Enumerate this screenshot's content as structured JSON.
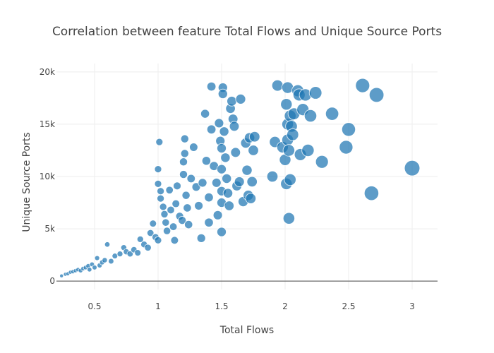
{
  "chart_data": {
    "type": "scatter",
    "title": "Correlation between feature Total Flows and Unique Source Ports",
    "xlabel": "Total Flows",
    "ylabel": "Unique Source Ports",
    "xlim": [
      0.2,
      3.2
    ],
    "ylim": [
      -800,
      20800
    ],
    "xticks": [
      0.5,
      1,
      1.5,
      2,
      2.5,
      3
    ],
    "xtick_labels": [
      "0.5",
      "1",
      "1.5",
      "2",
      "2.5",
      "3"
    ],
    "yticks": [
      0,
      5000,
      10000,
      15000,
      20000
    ],
    "ytick_labels": [
      "0",
      "5k",
      "10k",
      "15k",
      "20k"
    ],
    "grid": true,
    "legend": "none",
    "marker_color": "#1f77b4",
    "marker_outline_color": "#ffffff",
    "series": [
      {
        "points": [
          {
            "x": 0.24,
            "y": 500
          },
          {
            "x": 0.27,
            "y": 650
          },
          {
            "x": 0.29,
            "y": 700
          },
          {
            "x": 0.31,
            "y": 850
          },
          {
            "x": 0.33,
            "y": 900
          },
          {
            "x": 0.35,
            "y": 1000
          },
          {
            "x": 0.37,
            "y": 1100
          },
          {
            "x": 0.39,
            "y": 1000
          },
          {
            "x": 0.41,
            "y": 1200
          },
          {
            "x": 0.43,
            "y": 1300
          },
          {
            "x": 0.45,
            "y": 1450
          },
          {
            "x": 0.46,
            "y": 1100
          },
          {
            "x": 0.48,
            "y": 1600
          },
          {
            "x": 0.5,
            "y": 1300
          },
          {
            "x": 0.52,
            "y": 2200
          },
          {
            "x": 0.54,
            "y": 1500
          },
          {
            "x": 0.56,
            "y": 1800
          },
          {
            "x": 0.58,
            "y": 2000
          },
          {
            "x": 0.6,
            "y": 3500
          },
          {
            "x": 0.63,
            "y": 1900
          },
          {
            "x": 0.66,
            "y": 2400
          },
          {
            "x": 0.7,
            "y": 2600
          },
          {
            "x": 0.73,
            "y": 3200
          },
          {
            "x": 0.75,
            "y": 2800
          },
          {
            "x": 0.78,
            "y": 2600
          },
          {
            "x": 0.81,
            "y": 3000
          },
          {
            "x": 0.84,
            "y": 2700
          },
          {
            "x": 0.86,
            "y": 4000
          },
          {
            "x": 0.89,
            "y": 3500
          },
          {
            "x": 0.92,
            "y": 3200
          },
          {
            "x": 0.94,
            "y": 4600
          },
          {
            "x": 0.96,
            "y": 5500
          },
          {
            "x": 0.98,
            "y": 4200
          },
          {
            "x": 1.0,
            "y": 3900
          },
          {
            "x": 1.0,
            "y": 9300
          },
          {
            "x": 1.0,
            "y": 10700
          },
          {
            "x": 1.01,
            "y": 13300
          },
          {
            "x": 1.02,
            "y": 7900
          },
          {
            "x": 1.02,
            "y": 8600
          },
          {
            "x": 1.04,
            "y": 7100
          },
          {
            "x": 1.05,
            "y": 6400
          },
          {
            "x": 1.06,
            "y": 5600
          },
          {
            "x": 1.07,
            "y": 4800
          },
          {
            "x": 1.09,
            "y": 8700
          },
          {
            "x": 1.1,
            "y": 6800
          },
          {
            "x": 1.12,
            "y": 5200
          },
          {
            "x": 1.13,
            "y": 3900
          },
          {
            "x": 1.14,
            "y": 7400
          },
          {
            "x": 1.15,
            "y": 9100
          },
          {
            "x": 1.17,
            "y": 6200
          },
          {
            "x": 1.19,
            "y": 5800
          },
          {
            "x": 1.2,
            "y": 10200
          },
          {
            "x": 1.2,
            "y": 11400
          },
          {
            "x": 1.21,
            "y": 12200
          },
          {
            "x": 1.21,
            "y": 13600
          },
          {
            "x": 1.22,
            "y": 8200
          },
          {
            "x": 1.23,
            "y": 7000
          },
          {
            "x": 1.24,
            "y": 5400
          },
          {
            "x": 1.26,
            "y": 9800
          },
          {
            "x": 1.28,
            "y": 12800
          },
          {
            "x": 1.3,
            "y": 9000
          },
          {
            "x": 1.32,
            "y": 7200
          },
          {
            "x": 1.34,
            "y": 4100
          },
          {
            "x": 1.35,
            "y": 9400
          },
          {
            "x": 1.37,
            "y": 16000
          },
          {
            "x": 1.38,
            "y": 11500
          },
          {
            "x": 1.4,
            "y": 8000
          },
          {
            "x": 1.4,
            "y": 5600
          },
          {
            "x": 1.42,
            "y": 14500
          },
          {
            "x": 1.42,
            "y": 18600
          },
          {
            "x": 1.44,
            "y": 11000
          },
          {
            "x": 1.46,
            "y": 9400
          },
          {
            "x": 1.47,
            "y": 6300
          },
          {
            "x": 1.48,
            "y": 15100
          },
          {
            "x": 1.49,
            "y": 13400
          },
          {
            "x": 1.5,
            "y": 12700
          },
          {
            "x": 1.5,
            "y": 10700
          },
          {
            "x": 1.5,
            "y": 8600
          },
          {
            "x": 1.5,
            "y": 7500
          },
          {
            "x": 1.5,
            "y": 4700
          },
          {
            "x": 1.51,
            "y": 18500
          },
          {
            "x": 1.51,
            "y": 17900
          },
          {
            "x": 1.52,
            "y": 14300
          },
          {
            "x": 1.53,
            "y": 11800
          },
          {
            "x": 1.54,
            "y": 9800
          },
          {
            "x": 1.55,
            "y": 8400
          },
          {
            "x": 1.56,
            "y": 7200
          },
          {
            "x": 1.57,
            "y": 16500
          },
          {
            "x": 1.58,
            "y": 17200
          },
          {
            "x": 1.59,
            "y": 15500
          },
          {
            "x": 1.6,
            "y": 14800
          },
          {
            "x": 1.61,
            "y": 12300
          },
          {
            "x": 1.62,
            "y": 9100
          },
          {
            "x": 1.64,
            "y": 9500
          },
          {
            "x": 1.65,
            "y": 17400
          },
          {
            "x": 1.67,
            "y": 7600
          },
          {
            "x": 1.69,
            "y": 13200
          },
          {
            "x": 1.7,
            "y": 10600
          },
          {
            "x": 1.71,
            "y": 8200
          },
          {
            "x": 1.72,
            "y": 13700
          },
          {
            "x": 1.73,
            "y": 7900
          },
          {
            "x": 1.74,
            "y": 9500
          },
          {
            "x": 1.75,
            "y": 12500
          },
          {
            "x": 1.76,
            "y": 13800
          },
          {
            "x": 1.9,
            "y": 10000
          },
          {
            "x": 1.92,
            "y": 13300
          },
          {
            "x": 1.94,
            "y": 18700
          },
          {
            "x": 1.98,
            "y": 12800
          },
          {
            "x": 2.0,
            "y": 11600
          },
          {
            "x": 2.01,
            "y": 9300
          },
          {
            "x": 2.01,
            "y": 16900
          },
          {
            "x": 2.02,
            "y": 18500
          },
          {
            "x": 2.02,
            "y": 15000
          },
          {
            "x": 2.02,
            "y": 13500
          },
          {
            "x": 2.03,
            "y": 12500
          },
          {
            "x": 2.03,
            "y": 6000
          },
          {
            "x": 2.04,
            "y": 9700
          },
          {
            "x": 2.04,
            "y": 15800
          },
          {
            "x": 2.05,
            "y": 14800
          },
          {
            "x": 2.06,
            "y": 14000
          },
          {
            "x": 2.07,
            "y": 16000
          },
          {
            "x": 2.1,
            "y": 18200
          },
          {
            "x": 2.11,
            "y": 17800
          },
          {
            "x": 2.12,
            "y": 12100
          },
          {
            "x": 2.14,
            "y": 16400
          },
          {
            "x": 2.16,
            "y": 17800
          },
          {
            "x": 2.18,
            "y": 12500
          },
          {
            "x": 2.2,
            "y": 15800
          },
          {
            "x": 2.24,
            "y": 18000
          },
          {
            "x": 2.29,
            "y": 11400
          },
          {
            "x": 2.37,
            "y": 16000
          },
          {
            "x": 2.48,
            "y": 12800
          },
          {
            "x": 2.5,
            "y": 14500
          },
          {
            "x": 2.61,
            "y": 18700
          },
          {
            "x": 2.68,
            "y": 8400
          },
          {
            "x": 2.72,
            "y": 17800
          },
          {
            "x": 3.0,
            "y": 10800
          }
        ]
      }
    ]
  }
}
